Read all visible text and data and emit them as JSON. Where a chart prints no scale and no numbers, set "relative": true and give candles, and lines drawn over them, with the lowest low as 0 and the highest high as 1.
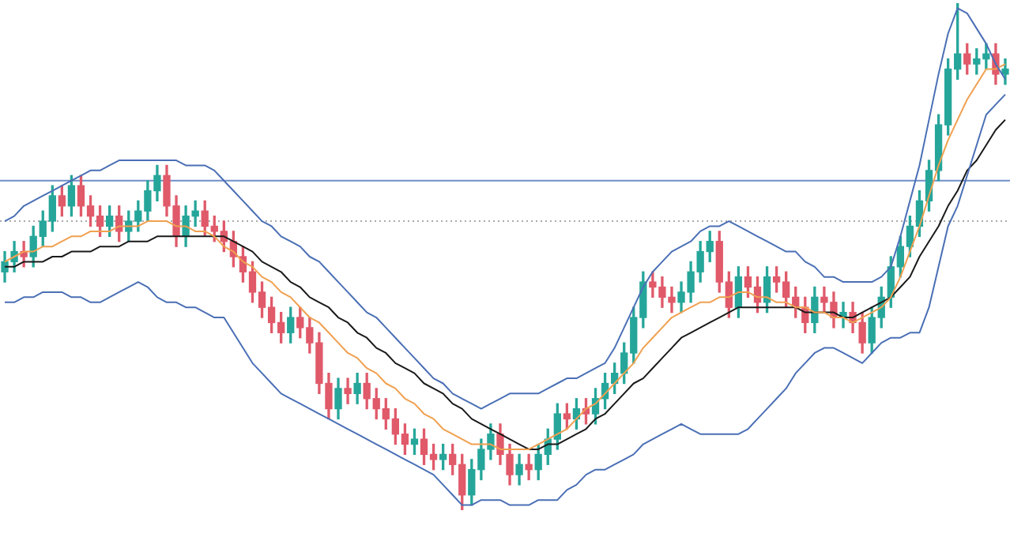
{
  "chart_data": {
    "type": "candlestick",
    "relative": true,
    "legend": false,
    "tick_labels": false,
    "marker": "none",
    "categories": [
      null,
      null,
      null,
      null,
      null,
      null,
      null,
      null,
      null,
      null,
      null,
      null,
      null,
      null,
      null,
      null,
      null,
      null,
      null,
      null,
      null,
      null,
      null,
      null,
      null,
      null,
      null,
      null,
      null,
      null,
      null,
      null,
      null,
      null,
      null,
      null,
      null,
      null,
      null,
      null,
      null,
      null,
      null,
      null,
      null,
      null,
      null,
      null,
      null,
      null,
      null,
      null,
      null,
      null,
      null,
      null,
      null,
      null,
      null,
      null,
      null,
      null,
      null,
      null,
      null,
      null,
      null,
      null,
      null,
      null,
      null,
      null,
      null,
      null,
      null,
      null,
      null,
      null,
      null,
      null,
      null,
      null,
      null,
      null,
      null,
      null,
      null,
      null,
      null,
      null,
      null,
      null,
      null,
      null,
      null,
      null,
      null,
      null,
      null,
      null,
      null,
      null,
      null,
      null,
      null,
      null
    ],
    "ohlc": [
      [
        0.47,
        0.51,
        0.45,
        0.49
      ],
      [
        0.49,
        0.53,
        0.47,
        0.51
      ],
      [
        0.51,
        0.53,
        0.48,
        0.5
      ],
      [
        0.5,
        0.56,
        0.48,
        0.54
      ],
      [
        0.54,
        0.59,
        0.52,
        0.57
      ],
      [
        0.57,
        0.64,
        0.55,
        0.62
      ],
      [
        0.62,
        0.64,
        0.58,
        0.6
      ],
      [
        0.6,
        0.66,
        0.58,
        0.64
      ],
      [
        0.64,
        0.66,
        0.58,
        0.6
      ],
      [
        0.6,
        0.62,
        0.56,
        0.58
      ],
      [
        0.58,
        0.6,
        0.54,
        0.56
      ],
      [
        0.56,
        0.6,
        0.54,
        0.58
      ],
      [
        0.58,
        0.6,
        0.53,
        0.55
      ],
      [
        0.55,
        0.59,
        0.53,
        0.57
      ],
      [
        0.57,
        0.61,
        0.55,
        0.59
      ],
      [
        0.59,
        0.65,
        0.57,
        0.63
      ],
      [
        0.63,
        0.68,
        0.61,
        0.66
      ],
      [
        0.66,
        0.68,
        0.58,
        0.6
      ],
      [
        0.6,
        0.62,
        0.52,
        0.54
      ],
      [
        0.54,
        0.6,
        0.52,
        0.58
      ],
      [
        0.58,
        0.61,
        0.56,
        0.59
      ],
      [
        0.59,
        0.61,
        0.54,
        0.56
      ],
      [
        0.56,
        0.58,
        0.53,
        0.55
      ],
      [
        0.55,
        0.57,
        0.51,
        0.53
      ],
      [
        0.53,
        0.55,
        0.48,
        0.5
      ],
      [
        0.5,
        0.52,
        0.45,
        0.47
      ],
      [
        0.47,
        0.49,
        0.41,
        0.43
      ],
      [
        0.43,
        0.45,
        0.38,
        0.4
      ],
      [
        0.4,
        0.42,
        0.35,
        0.37
      ],
      [
        0.37,
        0.39,
        0.33,
        0.35
      ],
      [
        0.35,
        0.4,
        0.33,
        0.38
      ],
      [
        0.38,
        0.4,
        0.34,
        0.36
      ],
      [
        0.36,
        0.38,
        0.31,
        0.33
      ],
      [
        0.33,
        0.35,
        0.23,
        0.25
      ],
      [
        0.25,
        0.27,
        0.18,
        0.2
      ],
      [
        0.2,
        0.26,
        0.18,
        0.24
      ],
      [
        0.24,
        0.26,
        0.21,
        0.23
      ],
      [
        0.23,
        0.27,
        0.21,
        0.25
      ],
      [
        0.25,
        0.27,
        0.2,
        0.22
      ],
      [
        0.22,
        0.24,
        0.18,
        0.2
      ],
      [
        0.2,
        0.22,
        0.16,
        0.18
      ],
      [
        0.18,
        0.2,
        0.13,
        0.15
      ],
      [
        0.15,
        0.17,
        0.11,
        0.13
      ],
      [
        0.13,
        0.16,
        0.11,
        0.14
      ],
      [
        0.14,
        0.16,
        0.09,
        0.11
      ],
      [
        0.11,
        0.13,
        0.08,
        0.1
      ],
      [
        0.1,
        0.13,
        0.08,
        0.11
      ],
      [
        0.11,
        0.13,
        0.07,
        0.09
      ],
      [
        0.09,
        0.11,
        0.0,
        0.03
      ],
      [
        0.03,
        0.1,
        0.01,
        0.08
      ],
      [
        0.08,
        0.14,
        0.06,
        0.12
      ],
      [
        0.12,
        0.17,
        0.1,
        0.15
      ],
      [
        0.15,
        0.17,
        0.09,
        0.11
      ],
      [
        0.11,
        0.13,
        0.05,
        0.07
      ],
      [
        0.07,
        0.11,
        0.05,
        0.09
      ],
      [
        0.09,
        0.11,
        0.06,
        0.08
      ],
      [
        0.08,
        0.13,
        0.06,
        0.11
      ],
      [
        0.11,
        0.16,
        0.09,
        0.14
      ],
      [
        0.14,
        0.21,
        0.12,
        0.19
      ],
      [
        0.19,
        0.21,
        0.16,
        0.18
      ],
      [
        0.18,
        0.22,
        0.16,
        0.2
      ],
      [
        0.2,
        0.22,
        0.17,
        0.19
      ],
      [
        0.19,
        0.24,
        0.17,
        0.22
      ],
      [
        0.22,
        0.27,
        0.2,
        0.25
      ],
      [
        0.25,
        0.29,
        0.23,
        0.27
      ],
      [
        0.27,
        0.33,
        0.25,
        0.31
      ],
      [
        0.31,
        0.4,
        0.29,
        0.38
      ],
      [
        0.38,
        0.47,
        0.36,
        0.45
      ],
      [
        0.45,
        0.47,
        0.42,
        0.44
      ],
      [
        0.44,
        0.46,
        0.4,
        0.42
      ],
      [
        0.42,
        0.44,
        0.39,
        0.41
      ],
      [
        0.41,
        0.45,
        0.39,
        0.43
      ],
      [
        0.43,
        0.49,
        0.41,
        0.47
      ],
      [
        0.47,
        0.53,
        0.45,
        0.51
      ],
      [
        0.51,
        0.55,
        0.49,
        0.53
      ],
      [
        0.53,
        0.55,
        0.43,
        0.45
      ],
      [
        0.45,
        0.47,
        0.38,
        0.4
      ],
      [
        0.4,
        0.48,
        0.38,
        0.46
      ],
      [
        0.46,
        0.48,
        0.42,
        0.44
      ],
      [
        0.44,
        0.46,
        0.39,
        0.41
      ],
      [
        0.41,
        0.48,
        0.39,
        0.46
      ],
      [
        0.46,
        0.48,
        0.43,
        0.45
      ],
      [
        0.45,
        0.47,
        0.4,
        0.42
      ],
      [
        0.42,
        0.44,
        0.38,
        0.4
      ],
      [
        0.4,
        0.42,
        0.35,
        0.37
      ],
      [
        0.37,
        0.44,
        0.35,
        0.42
      ],
      [
        0.42,
        0.44,
        0.39,
        0.41
      ],
      [
        0.41,
        0.43,
        0.36,
        0.38
      ],
      [
        0.38,
        0.41,
        0.36,
        0.39
      ],
      [
        0.39,
        0.41,
        0.35,
        0.37
      ],
      [
        0.37,
        0.39,
        0.31,
        0.33
      ],
      [
        0.33,
        0.4,
        0.31,
        0.38
      ],
      [
        0.38,
        0.44,
        0.36,
        0.42
      ],
      [
        0.42,
        0.5,
        0.4,
        0.48
      ],
      [
        0.48,
        0.54,
        0.46,
        0.52
      ],
      [
        0.52,
        0.58,
        0.5,
        0.56
      ],
      [
        0.56,
        0.63,
        0.54,
        0.61
      ],
      [
        0.61,
        0.69,
        0.59,
        0.67
      ],
      [
        0.67,
        0.78,
        0.65,
        0.76
      ],
      [
        0.76,
        0.89,
        0.74,
        0.87
      ],
      [
        0.87,
        1.0,
        0.85,
        0.9
      ],
      [
        0.9,
        0.92,
        0.86,
        0.88
      ],
      [
        0.88,
        0.91,
        0.86,
        0.89
      ],
      [
        0.89,
        0.92,
        0.87,
        0.9
      ],
      [
        0.9,
        0.92,
        0.84,
        0.86
      ],
      [
        0.86,
        0.89,
        0.84,
        0.87
      ]
    ],
    "colors": [
      "#26a69a",
      "#26a69a",
      "#e05a6a",
      "#26a69a",
      "#26a69a",
      "#26a69a",
      "#e05a6a",
      "#26a69a",
      "#e05a6a",
      "#e05a6a",
      "#e05a6a",
      "#26a69a",
      "#e05a6a",
      "#26a69a",
      "#26a69a",
      "#26a69a",
      "#26a69a",
      "#e05a6a",
      "#e05a6a",
      "#26a69a",
      "#26a69a",
      "#e05a6a",
      "#e05a6a",
      "#e05a6a",
      "#e05a6a",
      "#e05a6a",
      "#e05a6a",
      "#e05a6a",
      "#e05a6a",
      "#e05a6a",
      "#26a69a",
      "#e05a6a",
      "#e05a6a",
      "#e05a6a",
      "#e05a6a",
      "#26a69a",
      "#e05a6a",
      "#26a69a",
      "#e05a6a",
      "#e05a6a",
      "#e05a6a",
      "#e05a6a",
      "#e05a6a",
      "#26a69a",
      "#e05a6a",
      "#e05a6a",
      "#26a69a",
      "#e05a6a",
      "#e05a6a",
      "#26a69a",
      "#26a69a",
      "#26a69a",
      "#e05a6a",
      "#e05a6a",
      "#26a69a",
      "#e05a6a",
      "#26a69a",
      "#26a69a",
      "#26a69a",
      "#e05a6a",
      "#26a69a",
      "#e05a6a",
      "#26a69a",
      "#26a69a",
      "#26a69a",
      "#26a69a",
      "#26a69a",
      "#26a69a",
      "#e05a6a",
      "#e05a6a",
      "#e05a6a",
      "#26a69a",
      "#26a69a",
      "#26a69a",
      "#26a69a",
      "#e05a6a",
      "#e05a6a",
      "#26a69a",
      "#e05a6a",
      "#e05a6a",
      "#26a69a",
      "#e05a6a",
      "#e05a6a",
      "#e05a6a",
      "#e05a6a",
      "#26a69a",
      "#e05a6a",
      "#e05a6a",
      "#26a69a",
      "#e05a6a",
      "#e05a6a",
      "#26a69a",
      "#26a69a",
      "#26a69a",
      "#26a69a",
      "#26a69a",
      "#26a69a",
      "#26a69a",
      "#26a69a",
      "#26a69a",
      "#26a69a",
      "#e05a6a",
      "#26a69a",
      "#26a69a",
      "#e05a6a",
      "#26a69a"
    ],
    "series": [
      {
        "type": "line",
        "color": "#4a6fb5",
        "values": [
          0.57,
          0.58,
          0.6,
          0.61,
          0.62,
          0.63,
          0.64,
          0.65,
          0.66,
          0.67,
          0.67,
          0.68,
          0.69,
          0.69,
          0.69,
          0.69,
          0.69,
          0.69,
          0.69,
          0.68,
          0.68,
          0.68,
          0.67,
          0.65,
          0.63,
          0.61,
          0.59,
          0.57,
          0.56,
          0.54,
          0.53,
          0.52,
          0.5,
          0.49,
          0.47,
          0.45,
          0.43,
          0.41,
          0.39,
          0.38,
          0.36,
          0.34,
          0.32,
          0.3,
          0.28,
          0.26,
          0.25,
          0.23,
          0.22,
          0.21,
          0.2,
          0.21,
          0.22,
          0.23,
          0.23,
          0.23,
          0.23,
          0.24,
          0.25,
          0.26,
          0.26,
          0.27,
          0.28,
          0.29,
          0.32,
          0.36,
          0.4,
          0.44,
          0.47,
          0.49,
          0.51,
          0.52,
          0.53,
          0.55,
          0.56,
          0.56,
          0.57,
          0.56,
          0.55,
          0.54,
          0.53,
          0.52,
          0.51,
          0.51,
          0.49,
          0.48,
          0.46,
          0.46,
          0.45,
          0.45,
          0.45,
          0.45,
          0.46,
          0.48,
          0.54,
          0.61,
          0.68,
          0.77,
          0.86,
          0.94,
          0.99,
          0.98,
          0.95,
          0.92,
          0.88,
          0.85
        ]
      },
      {
        "type": "line",
        "color": "#4a6fb5",
        "values": [
          0.41,
          0.41,
          0.42,
          0.42,
          0.43,
          0.43,
          0.43,
          0.42,
          0.42,
          0.41,
          0.41,
          0.42,
          0.43,
          0.44,
          0.45,
          0.44,
          0.42,
          0.41,
          0.41,
          0.4,
          0.4,
          0.39,
          0.38,
          0.38,
          0.35,
          0.32,
          0.29,
          0.27,
          0.25,
          0.23,
          0.22,
          0.21,
          0.2,
          0.19,
          0.18,
          0.17,
          0.16,
          0.15,
          0.14,
          0.13,
          0.12,
          0.11,
          0.1,
          0.09,
          0.08,
          0.07,
          0.05,
          0.03,
          0.01,
          0.01,
          0.02,
          0.02,
          0.02,
          0.01,
          0.01,
          0.01,
          0.02,
          0.02,
          0.02,
          0.04,
          0.05,
          0.07,
          0.08,
          0.08,
          0.09,
          0.1,
          0.11,
          0.13,
          0.14,
          0.15,
          0.16,
          0.17,
          0.16,
          0.15,
          0.15,
          0.15,
          0.15,
          0.15,
          0.16,
          0.18,
          0.2,
          0.22,
          0.24,
          0.27,
          0.29,
          0.31,
          0.32,
          0.32,
          0.31,
          0.3,
          0.29,
          0.31,
          0.33,
          0.34,
          0.34,
          0.35,
          0.35,
          0.4,
          0.48,
          0.56,
          0.6,
          0.66,
          0.72,
          0.78,
          0.8,
          0.82
        ]
      },
      {
        "type": "line",
        "color": "#f0a050",
        "values": [
          0.49,
          0.5,
          0.51,
          0.51,
          0.52,
          0.52,
          0.53,
          0.54,
          0.54,
          0.55,
          0.55,
          0.55,
          0.56,
          0.56,
          0.56,
          0.57,
          0.57,
          0.57,
          0.56,
          0.56,
          0.55,
          0.55,
          0.54,
          0.52,
          0.51,
          0.49,
          0.48,
          0.46,
          0.45,
          0.43,
          0.42,
          0.4,
          0.38,
          0.37,
          0.35,
          0.33,
          0.31,
          0.3,
          0.28,
          0.27,
          0.25,
          0.24,
          0.22,
          0.21,
          0.19,
          0.18,
          0.16,
          0.15,
          0.14,
          0.13,
          0.13,
          0.13,
          0.12,
          0.12,
          0.12,
          0.12,
          0.13,
          0.14,
          0.15,
          0.16,
          0.18,
          0.2,
          0.21,
          0.23,
          0.25,
          0.27,
          0.29,
          0.32,
          0.34,
          0.36,
          0.38,
          0.39,
          0.4,
          0.41,
          0.41,
          0.42,
          0.42,
          0.43,
          0.43,
          0.42,
          0.42,
          0.41,
          0.41,
          0.4,
          0.4,
          0.39,
          0.39,
          0.38,
          0.38,
          0.37,
          0.38,
          0.39,
          0.4,
          0.42,
          0.46,
          0.51,
          0.56,
          0.62,
          0.68,
          0.73,
          0.77,
          0.81,
          0.84,
          0.87,
          0.87,
          0.88
        ]
      },
      {
        "type": "line",
        "color": "#1a1a1a",
        "values": [
          0.48,
          0.48,
          0.49,
          0.49,
          0.49,
          0.5,
          0.5,
          0.51,
          0.51,
          0.51,
          0.52,
          0.52,
          0.52,
          0.53,
          0.53,
          0.53,
          0.54,
          0.54,
          0.54,
          0.54,
          0.54,
          0.54,
          0.54,
          0.54,
          0.53,
          0.52,
          0.51,
          0.49,
          0.48,
          0.47,
          0.45,
          0.44,
          0.42,
          0.41,
          0.4,
          0.38,
          0.37,
          0.35,
          0.34,
          0.32,
          0.31,
          0.29,
          0.28,
          0.27,
          0.25,
          0.24,
          0.23,
          0.21,
          0.2,
          0.18,
          0.17,
          0.16,
          0.15,
          0.14,
          0.13,
          0.12,
          0.12,
          0.13,
          0.13,
          0.14,
          0.15,
          0.16,
          0.18,
          0.19,
          0.21,
          0.23,
          0.25,
          0.26,
          0.28,
          0.3,
          0.32,
          0.34,
          0.35,
          0.36,
          0.37,
          0.38,
          0.39,
          0.4,
          0.4,
          0.4,
          0.4,
          0.4,
          0.4,
          0.4,
          0.39,
          0.39,
          0.39,
          0.39,
          0.38,
          0.38,
          0.39,
          0.4,
          0.41,
          0.42,
          0.44,
          0.46,
          0.5,
          0.53,
          0.56,
          0.6,
          0.63,
          0.67,
          0.69,
          0.72,
          0.75,
          0.77
        ]
      }
    ],
    "ref_lines": [
      {
        "axis": "y",
        "value": 0.65,
        "color": "#6f8fc8",
        "line_style": "solid"
      },
      {
        "axis": "y",
        "value": 0.57,
        "color": "#aaaaaa",
        "line_style": "dotted"
      }
    ]
  }
}
